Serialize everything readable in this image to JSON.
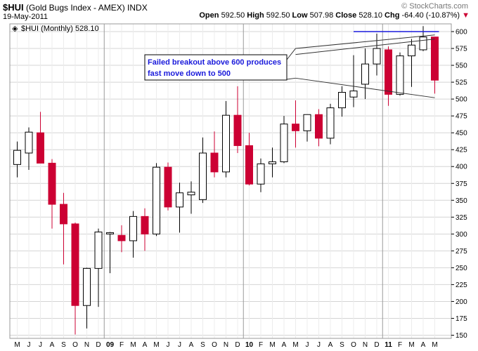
{
  "header": {
    "symbol": "$HUI",
    "description": "(Gold Bugs Index - AMEX)",
    "exchange": "INDX",
    "date": "19-May-2011",
    "brand": "© StockCharts.com",
    "open_label": "Open",
    "open": "592.50",
    "high_label": "High",
    "high": "592.50",
    "low_label": "Low",
    "low": "507.98",
    "close_label": "Close",
    "close": "528.10",
    "chg_label": "Chg",
    "chg": "-64.40 (-10.87%)",
    "chg_arrow": "▼"
  },
  "legend": {
    "text": "$HUI (Monthly) 528.10"
  },
  "annotation": {
    "line1": "Failed breakout above 600 produces",
    "line2": "fast move down to 500"
  },
  "colors": {
    "up_fill": "#ffffff",
    "down_fill": "#cc0033",
    "outline": "#000000",
    "grid": "#d4d4d4",
    "annotation": "#1a1adb",
    "resistance_line": "#1a1adb",
    "trend_line": "#333333"
  },
  "chart_data": {
    "type": "candlestick",
    "title": "$HUI (Gold Bugs Index - AMEX) INDX",
    "period": "Monthly",
    "y_ticks": [
      150,
      175,
      200,
      225,
      250,
      275,
      300,
      325,
      350,
      375,
      400,
      425,
      450,
      475,
      500,
      525,
      550,
      575,
      600
    ],
    "x_labels": [
      "M",
      "J",
      "J",
      "A",
      "S",
      "O",
      "N",
      "D",
      "09",
      "F",
      "M",
      "A",
      "M",
      "J",
      "J",
      "A",
      "S",
      "O",
      "N",
      "D",
      "10",
      "F",
      "M",
      "A",
      "M",
      "J",
      "J",
      "A",
      "S",
      "O",
      "N",
      "D",
      "11",
      "F",
      "M",
      "A",
      "M"
    ],
    "year_labels": [
      "09",
      "10",
      "11"
    ],
    "candles": [
      {
        "o": 403,
        "h": 437,
        "l": 384,
        "c": 424
      },
      {
        "o": 420,
        "h": 458,
        "l": 395,
        "c": 451
      },
      {
        "o": 450,
        "h": 481,
        "l": 405,
        "c": 405
      },
      {
        "o": 405,
        "h": 411,
        "l": 308,
        "c": 344
      },
      {
        "o": 344,
        "h": 361,
        "l": 255,
        "c": 315
      },
      {
        "o": 315,
        "h": 317,
        "l": 151,
        "c": 194
      },
      {
        "o": 194,
        "h": 250,
        "l": 160,
        "c": 249
      },
      {
        "o": 249,
        "h": 308,
        "l": 192,
        "c": 303
      },
      {
        "o": 300,
        "h": 303,
        "l": 242,
        "c": 302
      },
      {
        "o": 298,
        "h": 313,
        "l": 273,
        "c": 290
      },
      {
        "o": 290,
        "h": 334,
        "l": 265,
        "c": 326
      },
      {
        "o": 326,
        "h": 338,
        "l": 275,
        "c": 300
      },
      {
        "o": 300,
        "h": 405,
        "l": 297,
        "c": 399
      },
      {
        "o": 399,
        "h": 406,
        "l": 335,
        "c": 340
      },
      {
        "o": 340,
        "h": 376,
        "l": 302,
        "c": 361
      },
      {
        "o": 358,
        "h": 378,
        "l": 330,
        "c": 362
      },
      {
        "o": 351,
        "h": 443,
        "l": 346,
        "c": 420
      },
      {
        "o": 420,
        "h": 452,
        "l": 384,
        "c": 392
      },
      {
        "o": 392,
        "h": 497,
        "l": 384,
        "c": 476
      },
      {
        "o": 476,
        "h": 519,
        "l": 420,
        "c": 431
      },
      {
        "o": 431,
        "h": 450,
        "l": 372,
        "c": 374
      },
      {
        "o": 374,
        "h": 412,
        "l": 362,
        "c": 404
      },
      {
        "o": 404,
        "h": 428,
        "l": 384,
        "c": 407
      },
      {
        "o": 407,
        "h": 475,
        "l": 405,
        "c": 463
      },
      {
        "o": 463,
        "h": 498,
        "l": 428,
        "c": 453
      },
      {
        "o": 453,
        "h": 477,
        "l": 437,
        "c": 477
      },
      {
        "o": 477,
        "h": 485,
        "l": 430,
        "c": 442
      },
      {
        "o": 442,
        "h": 493,
        "l": 433,
        "c": 487
      },
      {
        "o": 487,
        "h": 519,
        "l": 474,
        "c": 510
      },
      {
        "o": 503,
        "h": 565,
        "l": 488,
        "c": 512
      },
      {
        "o": 522,
        "h": 575,
        "l": 500,
        "c": 552
      },
      {
        "o": 552,
        "h": 597,
        "l": 535,
        "c": 575
      },
      {
        "o": 573,
        "h": 578,
        "l": 490,
        "c": 507
      },
      {
        "o": 507,
        "h": 569,
        "l": 505,
        "c": 564
      },
      {
        "o": 564,
        "h": 589,
        "l": 518,
        "c": 580
      },
      {
        "o": 573,
        "h": 608,
        "l": 571,
        "c": 592
      },
      {
        "o": 592,
        "h": 592,
        "l": 508,
        "c": 528
      }
    ],
    "lines": [
      {
        "kind": "resistance",
        "from_index": 29,
        "to_index": 36,
        "value": 600
      },
      {
        "kind": "trend-upper",
        "from_index": 24,
        "from_value": 575,
        "to_index": 36,
        "to_value": 595
      },
      {
        "kind": "trend-upper-2",
        "from_index": 24,
        "from_value": 566,
        "to_index": 36,
        "to_value": 589
      },
      {
        "kind": "trend-lower",
        "from_index": 24,
        "from_value": 531,
        "to_index": 36,
        "to_value": 502
      }
    ]
  }
}
